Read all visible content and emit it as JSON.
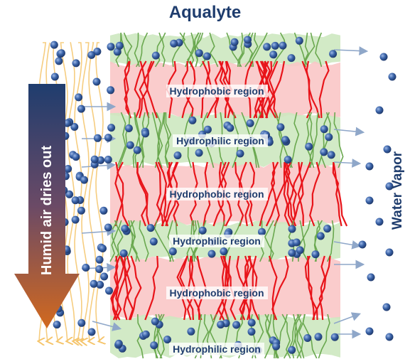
{
  "title": "Aqualyte",
  "left_arrow_label": "Humid air dries out",
  "right_label": "Water Vapor",
  "regions": [
    {
      "label": "Hydrophobic region",
      "kind": "hydrophobic"
    },
    {
      "label": "Hydrophilic region",
      "kind": "hydrophilic"
    },
    {
      "label": "Hydrophobic region",
      "kind": "hydrophobic"
    },
    {
      "label": "Hydrophilic region",
      "kind": "hydrophilic"
    },
    {
      "label": "Hydrophobic region",
      "kind": "hydrophobic"
    },
    {
      "label": "Hydrophilic region",
      "kind": "hydrophilic"
    }
  ],
  "colors": {
    "title": "#1f3d6e",
    "hydrophobic_fill": "#f9c6c6",
    "hydrophilic_fill": "#cde8c0",
    "hydrophobic_chain": "#e8141a",
    "hydrophilic_chain": "#6aa84f",
    "water_molecule": "#2f5597",
    "airflow_line": "#f5c46a",
    "arrow_top": "#1f3d6e",
    "arrow_bottom": "#d2691e",
    "vapor_arrow": "#8fa7c9"
  }
}
